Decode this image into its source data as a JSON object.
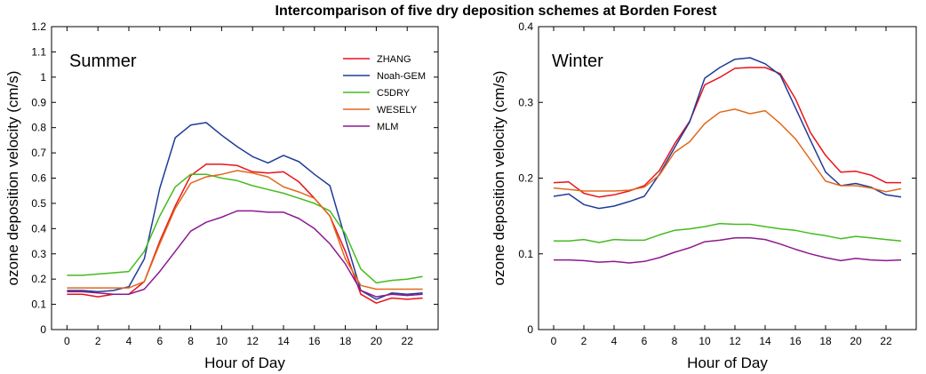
{
  "figure": {
    "title": "Intercomparison of five dry deposition schemes at Borden Forest"
  },
  "colors": {
    "ZHANG": "#e8141c",
    "Noah-GEM": "#1f3c98",
    "C5DRY": "#44bb1f",
    "WESELY": "#e2681c",
    "MLM": "#8a1a8f"
  },
  "chart_data": [
    {
      "type": "line",
      "panel_label": "Summer",
      "xlabel": "Hour of Day",
      "ylabel": "ozone deposition velocity (cm/s)",
      "xlim": [
        -1,
        24
      ],
      "ylim": [
        0,
        1.2
      ],
      "xticks": [
        0,
        2,
        4,
        6,
        8,
        10,
        12,
        14,
        16,
        18,
        20,
        22
      ],
      "yticks": [
        0,
        0.1,
        0.2,
        0.3,
        0.4,
        0.5,
        0.6,
        0.7,
        0.8,
        0.9,
        1,
        1.1,
        1.2
      ],
      "legend_position": "top-right",
      "x": [
        0,
        1,
        2,
        3,
        4,
        5,
        6,
        7,
        8,
        9,
        10,
        11,
        12,
        13,
        14,
        15,
        16,
        17,
        18,
        19,
        20,
        21,
        22,
        23
      ],
      "series": [
        {
          "name": "ZHANG",
          "values": [
            0.14,
            0.14,
            0.13,
            0.14,
            0.14,
            0.19,
            0.35,
            0.49,
            0.61,
            0.655,
            0.655,
            0.65,
            0.625,
            0.62,
            0.625,
            0.585,
            0.52,
            0.45,
            0.31,
            0.14,
            0.105,
            0.125,
            0.12,
            0.125
          ]
        },
        {
          "name": "Noah-GEM",
          "values": [
            0.155,
            0.155,
            0.15,
            0.155,
            0.17,
            0.28,
            0.56,
            0.76,
            0.81,
            0.82,
            0.77,
            0.725,
            0.685,
            0.66,
            0.69,
            0.665,
            0.615,
            0.57,
            0.36,
            0.155,
            0.12,
            0.145,
            0.14,
            0.145
          ]
        },
        {
          "name": "C5DRY",
          "values": [
            0.215,
            0.215,
            0.22,
            0.225,
            0.23,
            0.31,
            0.45,
            0.565,
            0.615,
            0.615,
            0.6,
            0.59,
            0.57,
            0.555,
            0.54,
            0.52,
            0.5,
            0.47,
            0.38,
            0.24,
            0.185,
            0.195,
            0.2,
            0.21
          ]
        },
        {
          "name": "WESELY",
          "values": [
            0.165,
            0.165,
            0.165,
            0.165,
            0.165,
            0.19,
            0.34,
            0.48,
            0.58,
            0.605,
            0.615,
            0.63,
            0.62,
            0.605,
            0.565,
            0.545,
            0.52,
            0.45,
            0.28,
            0.175,
            0.16,
            0.16,
            0.16,
            0.16
          ]
        },
        {
          "name": "MLM",
          "values": [
            0.15,
            0.15,
            0.145,
            0.14,
            0.14,
            0.16,
            0.23,
            0.31,
            0.39,
            0.425,
            0.445,
            0.47,
            0.47,
            0.465,
            0.465,
            0.44,
            0.4,
            0.34,
            0.26,
            0.155,
            0.13,
            0.14,
            0.135,
            0.14
          ]
        }
      ]
    },
    {
      "type": "line",
      "panel_label": "Winter",
      "xlabel": "Hour of Day",
      "ylabel": "ozone deposition velocity (cm/s)",
      "xlim": [
        -1,
        24
      ],
      "ylim": [
        0,
        0.4
      ],
      "xticks": [
        0,
        2,
        4,
        6,
        8,
        10,
        12,
        14,
        16,
        18,
        20,
        22
      ],
      "yticks": [
        0,
        0.1,
        0.2,
        0.3,
        0.4
      ],
      "x": [
        0,
        1,
        2,
        3,
        4,
        5,
        6,
        7,
        8,
        9,
        10,
        11,
        12,
        13,
        14,
        15,
        16,
        17,
        18,
        19,
        20,
        21,
        22,
        23
      ],
      "series": [
        {
          "name": "ZHANG",
          "values": [
            0.194,
            0.195,
            0.18,
            0.175,
            0.178,
            0.183,
            0.19,
            0.21,
            0.245,
            0.275,
            0.323,
            0.333,
            0.345,
            0.346,
            0.346,
            0.338,
            0.305,
            0.26,
            0.23,
            0.208,
            0.209,
            0.204,
            0.194,
            0.194
          ]
        },
        {
          "name": "Noah-GEM",
          "values": [
            0.176,
            0.179,
            0.165,
            0.16,
            0.163,
            0.169,
            0.176,
            0.205,
            0.24,
            0.274,
            0.332,
            0.346,
            0.357,
            0.359,
            0.351,
            0.336,
            0.293,
            0.25,
            0.208,
            0.19,
            0.193,
            0.188,
            0.178,
            0.175
          ]
        },
        {
          "name": "C5DRY",
          "values": [
            0.117,
            0.117,
            0.119,
            0.115,
            0.119,
            0.118,
            0.118,
            0.125,
            0.131,
            0.133,
            0.136,
            0.14,
            0.139,
            0.139,
            0.136,
            0.133,
            0.131,
            0.127,
            0.124,
            0.12,
            0.123,
            0.121,
            0.119,
            0.117
          ]
        },
        {
          "name": "WESELY",
          "values": [
            0.187,
            0.185,
            0.183,
            0.183,
            0.183,
            0.184,
            0.188,
            0.204,
            0.234,
            0.248,
            0.272,
            0.287,
            0.291,
            0.285,
            0.289,
            0.272,
            0.252,
            0.224,
            0.196,
            0.19,
            0.19,
            0.187,
            0.182,
            0.186
          ]
        },
        {
          "name": "MLM",
          "values": [
            0.092,
            0.092,
            0.091,
            0.089,
            0.09,
            0.088,
            0.09,
            0.095,
            0.102,
            0.108,
            0.116,
            0.118,
            0.121,
            0.121,
            0.119,
            0.113,
            0.106,
            0.1,
            0.095,
            0.091,
            0.094,
            0.092,
            0.091,
            0.092
          ]
        }
      ]
    }
  ]
}
